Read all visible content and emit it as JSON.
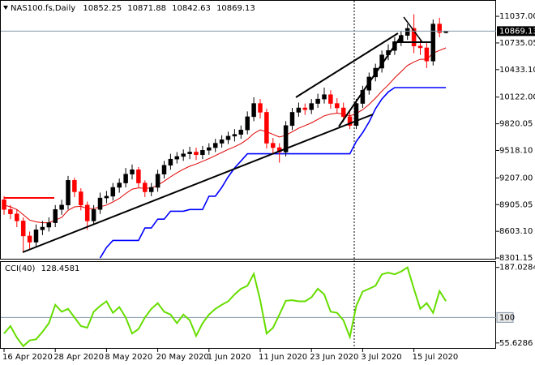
{
  "chart_data": {
    "type": "candlestick",
    "title": "NAS100.fs,Daily",
    "categories": [
      "16 Apr 2020",
      null,
      null,
      null,
      null,
      null,
      null,
      null,
      "28 Apr 2020",
      null,
      null,
      null,
      null,
      null,
      null,
      null,
      "8 May 2020",
      null,
      null,
      null,
      null,
      null,
      null,
      null,
      "20 May 2020",
      null,
      null,
      null,
      null,
      null,
      null,
      null,
      "1 Jun 2020",
      null,
      null,
      null,
      null,
      null,
      null,
      null,
      "11 Jun 2020",
      null,
      null,
      null,
      null,
      null,
      null,
      null,
      "23 Jun 2020",
      null,
      null,
      null,
      null,
      null,
      null,
      null,
      "3 Jul 2020",
      null,
      null,
      null,
      null,
      null,
      null,
      null,
      "15 Jul 2020",
      null,
      null,
      null,
      null,
      null
    ],
    "open": [
      8960,
      8850,
      8800,
      8720,
      8550,
      8480,
      8620,
      8650,
      8700,
      8850,
      8900,
      9180,
      9050,
      8900,
      8720,
      8850,
      8980,
      9000,
      9100,
      9150,
      9250,
      9300,
      9150,
      9050,
      9100,
      9250,
      9350,
      9420,
      9450,
      9480,
      9500,
      9470,
      9520,
      9550,
      9600,
      9640,
      9680,
      9700,
      9750,
      9900,
      10050,
      9950,
      9600,
      9550,
      9500,
      9800,
      9950,
      10000,
      9980,
      10050,
      10100,
      10150,
      10050,
      10000,
      9900,
      9800,
      10050,
      10200,
      10350,
      10450,
      10600,
      10650,
      10750,
      10820,
      10900,
      10700,
      10680,
      10530,
      10950,
      10852.25
    ],
    "high": [
      9000,
      8900,
      8850,
      8760,
      8600,
      8680,
      8720,
      8760,
      8900,
      8960,
      9230,
      9210,
      9090,
      8940,
      8900,
      9040,
      9060,
      9150,
      9200,
      9320,
      9360,
      9330,
      9180,
      9150,
      9300,
      9400,
      9480,
      9500,
      9530,
      9560,
      9550,
      9570,
      9600,
      9650,
      9690,
      9730,
      9760,
      9800,
      9960,
      10120,
      10100,
      9990,
      9660,
      9600,
      9850,
      10000,
      10060,
      10050,
      10100,
      10160,
      10230,
      10200,
      10110,
      10060,
      9950,
      10100,
      10250,
      10400,
      10500,
      10650,
      10720,
      10800,
      10870,
      10950,
      11060,
      10780,
      10740,
      11000,
      11020,
      10871.88
    ],
    "low": [
      8790,
      8740,
      8650,
      8360,
      8400,
      8430,
      8560,
      8600,
      8650,
      8790,
      8850,
      8990,
      8840,
      8620,
      8680,
      8800,
      8920,
      8950,
      9040,
      9100,
      9190,
      9100,
      8990,
      9000,
      9050,
      9200,
      9300,
      9370,
      9400,
      9420,
      9410,
      9420,
      9470,
      9500,
      9550,
      9590,
      9620,
      9650,
      9700,
      9850,
      9880,
      9540,
      9480,
      9380,
      9450,
      9750,
      9900,
      9920,
      9930,
      10000,
      10050,
      9990,
      9940,
      9840,
      9760,
      9760,
      10000,
      10150,
      10300,
      10400,
      10540,
      10600,
      10700,
      10770,
      10620,
      10600,
      10450,
      10480,
      10800,
      10842.63
    ],
    "close": [
      8850,
      8800,
      8720,
      8550,
      8480,
      8620,
      8650,
      8700,
      8850,
      8900,
      9180,
      9050,
      8900,
      8720,
      8850,
      8980,
      9000,
      9100,
      9150,
      9250,
      9300,
      9150,
      9050,
      9100,
      9250,
      9350,
      9420,
      9450,
      9480,
      9500,
      9470,
      9520,
      9550,
      9600,
      9640,
      9680,
      9700,
      9750,
      9900,
      10050,
      9950,
      9600,
      9550,
      9500,
      9800,
      9950,
      10000,
      9980,
      10050,
      10100,
      10150,
      10050,
      10000,
      9900,
      9800,
      10050,
      10200,
      10350,
      10450,
      10600,
      10650,
      10750,
      10820,
      10900,
      10700,
      10680,
      10530,
      10950,
      10852.25,
      10869.13
    ],
    "up_color": "#000000",
    "down_color": "#ff0000",
    "overlays": [
      {
        "color": "#e00000",
        "values": [
          8900,
          8880,
          8850,
          8790,
          8730,
          8710,
          8700,
          8700,
          8730,
          8760,
          8840,
          8880,
          8885,
          8860,
          8860,
          8880,
          8900,
          8935,
          8975,
          9030,
          9080,
          9095,
          9090,
          9093,
          9125,
          9170,
          9220,
          9265,
          9305,
          9340,
          9365,
          9395,
          9425,
          9460,
          9495,
          9530,
          9560,
          9595,
          9645,
          9710,
          9750,
          9730,
          9700,
          9670,
          9690,
          9730,
          9770,
          9800,
          9830,
          9870,
          9910,
          9930,
          9940,
          9930,
          9910,
          9935,
          9980,
          10040,
          10110,
          10190,
          10260,
          10340,
          10410,
          10480,
          10520,
          10550,
          10550,
          10620,
          10650,
          10680
        ]
      },
      {
        "color": "#0000ff",
        "values": [
          null,
          null,
          null,
          null,
          null,
          null,
          null,
          null,
          null,
          null,
          null,
          null,
          null,
          null,
          null,
          8300,
          8420,
          8500,
          8500,
          8500,
          8500,
          8500,
          8640,
          8640,
          8740,
          8740,
          8830,
          8830,
          8830,
          8850,
          8850,
          8850,
          9000,
          9000,
          9100,
          9220,
          9320,
          9400,
          9480,
          9480,
          9480,
          9480,
          9480,
          9480,
          9480,
          9480,
          9480,
          9480,
          9480,
          9480,
          9480,
          9480,
          9480,
          9480,
          9480,
          9620,
          9720,
          9840,
          9990,
          10100,
          10180,
          10230,
          10230,
          10230,
          10230,
          10230,
          10230,
          10230,
          10230,
          10230
        ]
      }
    ],
    "ylim": [
      8283,
      11203
    ],
    "yticks": [
      8301.15,
      {
        "value": 8603.1,
        "label": "8603.10"
      },
      8905.05,
      {
        "value": 9207,
        "label": "9207.00"
      },
      {
        "value": 9518.1,
        "label": "9518.10"
      },
      9820.05,
      {
        "value": 10122,
        "label": "10122.00"
      },
      {
        "value": 10433.1,
        "label": "10433.10"
      },
      10735.05,
      {
        "value": 11037,
        "label": "11037.00"
      }
    ],
    "indicator": {
      "type": "line",
      "name": "CCI(40)",
      "color": "#66dd00",
      "values": [
        72,
        85,
        65,
        50,
        60,
        62,
        75,
        90,
        122,
        110,
        115,
        100,
        85,
        82,
        110,
        120,
        128,
        108,
        118,
        100,
        72,
        80,
        100,
        115,
        125,
        110,
        105,
        90,
        105,
        95,
        68,
        90,
        105,
        115,
        122,
        128,
        140,
        150,
        155,
        176,
        130,
        72,
        82,
        105,
        129,
        130,
        128,
        128,
        135,
        150,
        140,
        110,
        108,
        95,
        66,
        120,
        145,
        150,
        155,
        175,
        178,
        175,
        180,
        187,
        150,
        115,
        125,
        108,
        146,
        128.4581
      ],
      "ylim": [
        45.5,
        196.5
      ],
      "yticks": [
        187.0284,
        55.6286
      ],
      "level": 100
    }
  }
}
